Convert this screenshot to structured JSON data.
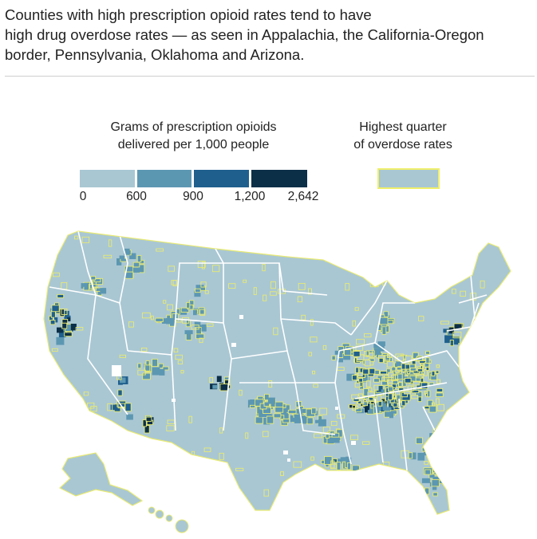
{
  "header": {
    "title_lines": [
      "Counties with high prescription opioid rates tend to have",
      "high drug overdose rates — as seen in Appalachia, the California-Oregon",
      "border, Pennsylvania, Oklahoma and Arizona."
    ]
  },
  "legend": {
    "opioid_title_lines": [
      "Grams of prescription opioids",
      "delivered per 1,000 people"
    ],
    "overdose_title_lines": [
      "Highest quarter",
      "of overdose rates"
    ],
    "tick_labels": [
      "0",
      "600",
      "900",
      "1,200",
      "2,642"
    ],
    "bins": [
      {
        "min": 0,
        "max": 600,
        "color": "#a9c7d3"
      },
      {
        "min": 600,
        "max": 900,
        "color": "#5c97b2"
      },
      {
        "min": 900,
        "max": 1200,
        "color": "#1f5f8d"
      },
      {
        "min": 1200,
        "max": 2642,
        "color": "#0c2f48"
      }
    ],
    "overdose_highlight_color": "#efef6a",
    "overdose_swatch_fill": "#a9c7d3"
  },
  "map": {
    "base_color": "#a9c7d3",
    "state_border_color": "#ffffff",
    "county_outline_color": "#e8ea73",
    "regions": [
      "Appalachia",
      "California-Oregon border",
      "Pennsylvania",
      "Oklahoma",
      "Arizona"
    ]
  }
}
